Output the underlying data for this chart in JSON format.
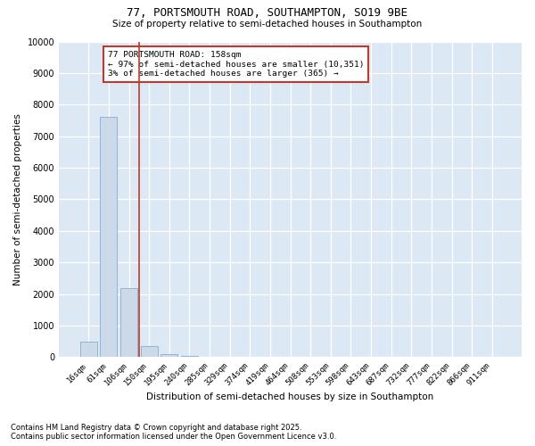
{
  "title_line1": "77, PORTSMOUTH ROAD, SOUTHAMPTON, SO19 9BE",
  "title_line2": "Size of property relative to semi-detached houses in Southampton",
  "xlabel": "Distribution of semi-detached houses by size in Southampton",
  "ylabel": "Number of semi-detached properties",
  "categories": [
    "16sqm",
    "61sqm",
    "106sqm",
    "150sqm",
    "195sqm",
    "240sqm",
    "285sqm",
    "329sqm",
    "374sqm",
    "419sqm",
    "464sqm",
    "508sqm",
    "553sqm",
    "598sqm",
    "643sqm",
    "687sqm",
    "732sqm",
    "777sqm",
    "822sqm",
    "866sqm",
    "911sqm"
  ],
  "values": [
    500,
    7600,
    2200,
    350,
    100,
    50,
    0,
    0,
    0,
    0,
    0,
    0,
    0,
    0,
    0,
    0,
    0,
    0,
    0,
    0,
    0
  ],
  "bar_color": "#ccd9e8",
  "bar_edge_color": "#8fb4d4",
  "vline_x_idx": 2.5,
  "vline_color": "#c0392b",
  "annotation_title": "77 PORTSMOUTH ROAD: 158sqm",
  "annotation_line2": "← 97% of semi-detached houses are smaller (10,351)",
  "annotation_line3": "3% of semi-detached houses are larger (365) →",
  "annotation_box_color": "#c0392b",
  "ylim": [
    0,
    10000
  ],
  "yticks": [
    0,
    1000,
    2000,
    3000,
    4000,
    5000,
    6000,
    7000,
    8000,
    9000,
    10000
  ],
  "footnote1": "Contains HM Land Registry data © Crown copyright and database right 2025.",
  "footnote2": "Contains public sector information licensed under the Open Government Licence v3.0.",
  "plot_bg_color": "#dce9f5",
  "figure_bg_color": "#ffffff"
}
